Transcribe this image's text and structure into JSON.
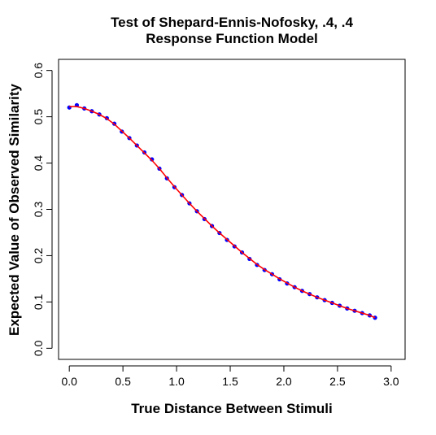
{
  "chart_data": {
    "type": "line",
    "title": [
      "Test of Shepard-Ennis-Nofosky, .4, .4",
      "Response Function Model"
    ],
    "xlabel": "True Distance Between Stimuli",
    "ylabel": "Expected Value of Observed Similarity",
    "xlim": [
      -0.1,
      3.13
    ],
    "ylim": [
      -0.024,
      0.624
    ],
    "xticks": [
      0.0,
      0.5,
      1.0,
      1.5,
      2.0,
      2.5,
      3.0
    ],
    "xtick_labels": [
      "0.0",
      "0.5",
      "1.0",
      "1.5",
      "2.0",
      "2.5",
      "3.0"
    ],
    "yticks": [
      0.0,
      0.1,
      0.2,
      0.3,
      0.4,
      0.5,
      0.6
    ],
    "ytick_labels": [
      "0.0",
      "0.1",
      "0.2",
      "0.3",
      "0.4",
      "0.5",
      "0.6"
    ],
    "grid": false,
    "series": [
      {
        "kind": "points",
        "color": "#0000ff",
        "x": [
          0.0,
          0.07,
          0.14,
          0.21,
          0.28,
          0.35,
          0.42,
          0.49,
          0.56,
          0.63,
          0.7,
          0.77,
          0.84,
          0.91,
          0.98,
          1.05,
          1.12,
          1.19,
          1.26,
          1.33,
          1.4,
          1.47,
          1.54,
          1.61,
          1.68,
          1.75,
          1.82,
          1.89,
          1.96,
          2.03,
          2.1,
          2.17,
          2.24,
          2.31,
          2.38,
          2.45,
          2.52,
          2.59,
          2.66,
          2.73,
          2.8,
          2.85
        ],
        "y": [
          0.52,
          0.525,
          0.518,
          0.512,
          0.505,
          0.497,
          0.485,
          0.468,
          0.454,
          0.438,
          0.423,
          0.408,
          0.388,
          0.367,
          0.348,
          0.331,
          0.313,
          0.296,
          0.279,
          0.264,
          0.249,
          0.234,
          0.22,
          0.207,
          0.193,
          0.18,
          0.169,
          0.16,
          0.149,
          0.14,
          0.132,
          0.124,
          0.117,
          0.11,
          0.104,
          0.098,
          0.092,
          0.086,
          0.081,
          0.076,
          0.071,
          0.066
        ]
      },
      {
        "kind": "line",
        "color": "#ff0000",
        "x": [
          0.0,
          0.07,
          0.14,
          0.21,
          0.28,
          0.35,
          0.42,
          0.49,
          0.56,
          0.63,
          0.7,
          0.77,
          0.84,
          0.91,
          0.98,
          1.05,
          1.12,
          1.19,
          1.26,
          1.33,
          1.4,
          1.47,
          1.54,
          1.61,
          1.68,
          1.75,
          1.82,
          1.89,
          1.96,
          2.03,
          2.1,
          2.17,
          2.24,
          2.31,
          2.38,
          2.45,
          2.52,
          2.59,
          2.66,
          2.73,
          2.8,
          2.85
        ],
        "y": [
          0.522,
          0.522,
          0.518,
          0.512,
          0.505,
          0.496,
          0.484,
          0.469,
          0.454,
          0.438,
          0.422,
          0.406,
          0.388,
          0.368,
          0.349,
          0.331,
          0.313,
          0.296,
          0.28,
          0.264,
          0.249,
          0.235,
          0.221,
          0.207,
          0.194,
          0.181,
          0.17,
          0.16,
          0.15,
          0.141,
          0.132,
          0.124,
          0.117,
          0.11,
          0.104,
          0.098,
          0.092,
          0.086,
          0.081,
          0.076,
          0.071,
          0.066
        ]
      }
    ]
  }
}
